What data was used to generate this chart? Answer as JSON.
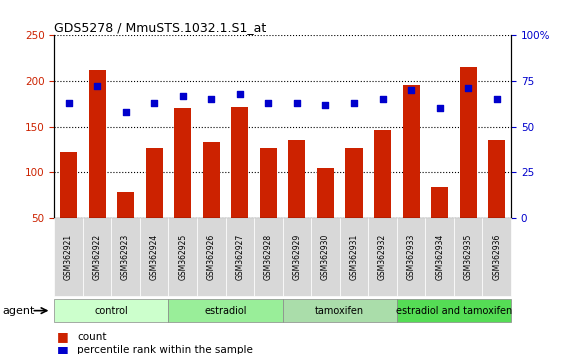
{
  "title": "GDS5278 / MmuSTS.1032.1.S1_at",
  "samples": [
    "GSM362921",
    "GSM362922",
    "GSM362923",
    "GSM362924",
    "GSM362925",
    "GSM362926",
    "GSM362927",
    "GSM362928",
    "GSM362929",
    "GSM362930",
    "GSM362931",
    "GSM362932",
    "GSM362933",
    "GSM362934",
    "GSM362935",
    "GSM362936"
  ],
  "counts": [
    122,
    212,
    78,
    127,
    170,
    133,
    172,
    126,
    135,
    105,
    126,
    146,
    196,
    84,
    215,
    135
  ],
  "percentile_ranks": [
    63,
    72,
    58,
    63,
    67,
    65,
    68,
    63,
    63,
    62,
    63,
    65,
    70,
    60,
    71,
    65
  ],
  "groups": [
    {
      "label": "control",
      "start": 0,
      "end": 4,
      "color": "#ccffcc"
    },
    {
      "label": "estradiol",
      "start": 4,
      "end": 8,
      "color": "#99ee99"
    },
    {
      "label": "tamoxifen",
      "start": 8,
      "end": 12,
      "color": "#aaddaa"
    },
    {
      "label": "estradiol and tamoxifen",
      "start": 12,
      "end": 16,
      "color": "#55dd55"
    }
  ],
  "bar_color": "#cc2200",
  "dot_color": "#0000cc",
  "ylim_left": [
    50,
    250
  ],
  "ylim_right": [
    0,
    100
  ],
  "yticks_left": [
    50,
    100,
    150,
    200,
    250
  ],
  "yticks_right": [
    0,
    25,
    50,
    75,
    100
  ],
  "ytick_labels_right": [
    "0",
    "25",
    "50",
    "75",
    "100%"
  ],
  "bg_color": "#ffffff",
  "bar_width": 0.6,
  "agent_label": "agent",
  "legend_count_label": "count",
  "legend_pct_label": "percentile rank within the sample",
  "xlabel_bg": "#cccccc",
  "group_colors": [
    "#ccffcc",
    "#99ee99",
    "#aaddaa",
    "#55dd55"
  ]
}
